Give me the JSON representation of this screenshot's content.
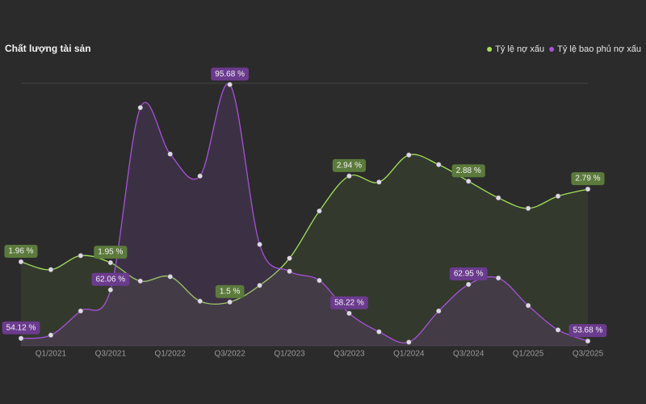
{
  "chart_data": {
    "type": "line",
    "title": "Chất lượng tài sản",
    "categories": [
      null,
      "Q1/2021",
      null,
      "Q3/2021",
      null,
      "Q1/2022",
      null,
      "Q3/2022",
      null,
      "Q1/2023",
      null,
      "Q3/2023",
      null,
      "Q1/2024",
      null,
      "Q3/2024",
      null,
      "Q1/2025",
      null,
      "Q3/2025"
    ],
    "series": [
      {
        "name": "Tỷ lệ nợ xấu",
        "color": "#a3e05a",
        "axis": "y",
        "values": [
          1.96,
          1.87,
          2.03,
          1.95,
          1.74,
          1.79,
          1.51,
          1.5,
          1.69,
          2.0,
          2.54,
          2.94,
          2.87,
          3.18,
          3.07,
          2.88,
          2.69,
          2.57,
          2.71,
          2.79
        ],
        "value_labels": [
          "1.96 %",
          null,
          null,
          "1.95 %",
          null,
          null,
          null,
          "1.5 %",
          null,
          null,
          null,
          "2.94 %",
          null,
          null,
          null,
          "2.88 %",
          null,
          null,
          null,
          "2.79 %"
        ]
      },
      {
        "name": "Tỷ lệ bao phủ nợ xấu",
        "color": "#a652d8",
        "axis": "y2",
        "values": [
          54.12,
          54.65,
          58.6,
          62.06,
          91.9,
          84.3,
          80.7,
          95.68,
          69.5,
          65.1,
          63.6,
          58.22,
          55.2,
          53.5,
          58.6,
          62.95,
          64.0,
          59.5,
          55.5,
          53.68
        ],
        "value_labels": [
          "54.12 %",
          null,
          null,
          "62.06 %",
          null,
          null,
          null,
          "95.68 %",
          null,
          null,
          null,
          "58.22 %",
          null,
          null,
          null,
          "62.95 %",
          null,
          null,
          null,
          "53.68 %"
        ]
      }
    ],
    "ylim": [
      1,
      4
    ],
    "y2lim": [
      52.9,
      95.9
    ],
    "legend": "top-right"
  }
}
